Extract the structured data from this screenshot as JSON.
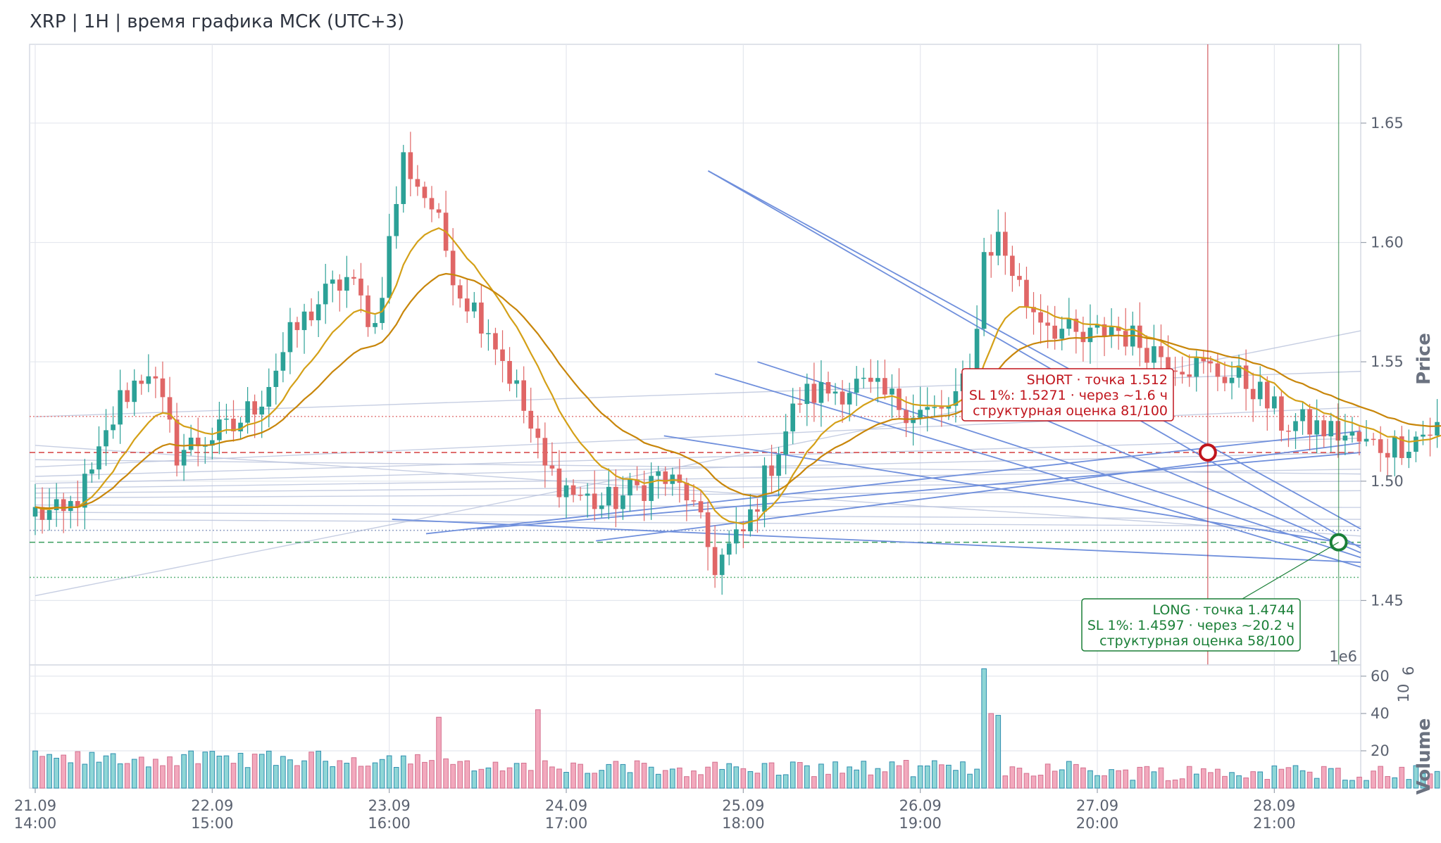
{
  "chart_data": {
    "type": "candlestick",
    "title": "XRP | 1H | время графика МСК (UTC+3)",
    "price_axis": {
      "label": "Price",
      "ylim": [
        1.423,
        1.683
      ],
      "ticks": [
        1.45,
        1.5,
        1.55,
        1.6,
        1.65
      ],
      "tick_labels": [
        "1.45",
        "1.50",
        "1.55",
        "1.60",
        "1.65"
      ]
    },
    "volume_axis": {
      "label": "Volume",
      "scale_label": "1e6",
      "exponent_label": "10",
      "exponent_power": "6",
      "ylim": [
        0,
        66
      ],
      "ticks": [
        20,
        40,
        60
      ],
      "tick_labels": [
        "20",
        "40",
        "60"
      ]
    },
    "x_axis": {
      "range_days": [
        0,
        7.8
      ],
      "ticks": [
        {
          "t": 0,
          "date": "21.09",
          "time": "14:00"
        },
        {
          "t": 1.0417,
          "date": "22.09",
          "time": "15:00"
        },
        {
          "t": 2.0833,
          "date": "23.09",
          "time": "16:00"
        },
        {
          "t": 3.125,
          "date": "24.09",
          "time": "17:00"
        },
        {
          "t": 4.1667,
          "date": "25.09",
          "time": "18:00"
        },
        {
          "t": 5.2083,
          "date": "26.09",
          "time": "19:00"
        },
        {
          "t": 6.25,
          "date": "27.09",
          "time": "20:00"
        },
        {
          "t": 7.2917,
          "date": "28.09",
          "time": "21:00"
        }
      ]
    },
    "price_anchors": [
      [
        0,
        1.487
      ],
      [
        4,
        1.485
      ],
      [
        8,
        1.502
      ],
      [
        12,
        1.534
      ],
      [
        16,
        1.548
      ],
      [
        20,
        1.512
      ],
      [
        24,
        1.518
      ],
      [
        28,
        1.522
      ],
      [
        32,
        1.536
      ],
      [
        36,
        1.56
      ],
      [
        40,
        1.575
      ],
      [
        44,
        1.585
      ],
      [
        48,
        1.565
      ],
      [
        52,
        1.635
      ],
      [
        56,
        1.615
      ],
      [
        60,
        1.58
      ],
      [
        64,
        1.565
      ],
      [
        68,
        1.538
      ],
      [
        72,
        1.505
      ],
      [
        76,
        1.495
      ],
      [
        80,
        1.49
      ],
      [
        84,
        1.495
      ],
      [
        88,
        1.502
      ],
      [
        92,
        1.495
      ],
      [
        96,
        1.465
      ],
      [
        100,
        1.478
      ],
      [
        104,
        1.508
      ],
      [
        108,
        1.535
      ],
      [
        112,
        1.538
      ],
      [
        116,
        1.54
      ],
      [
        120,
        1.535
      ],
      [
        124,
        1.53
      ],
      [
        128,
        1.528
      ],
      [
        132,
        1.543
      ],
      [
        134,
        1.595
      ],
      [
        136,
        1.602
      ],
      [
        140,
        1.575
      ],
      [
        144,
        1.565
      ],
      [
        148,
        1.558
      ],
      [
        152,
        1.565
      ],
      [
        156,
        1.558
      ],
      [
        160,
        1.552
      ],
      [
        164,
        1.548
      ],
      [
        168,
        1.545
      ],
      [
        172,
        1.54
      ],
      [
        176,
        1.525
      ],
      [
        180,
        1.523
      ],
      [
        184,
        1.52
      ],
      [
        188,
        1.515
      ],
      [
        192,
        1.515
      ],
      [
        196,
        1.52
      ],
      [
        200,
        1.524
      ],
      [
        204,
        1.522
      ],
      [
        208,
        1.51
      ],
      [
        212,
        1.492
      ],
      [
        216,
        1.478
      ],
      [
        220,
        1.474
      ],
      [
        222,
        1.482
      ]
    ],
    "volume_spikes": [
      [
        57,
        38
      ],
      [
        71,
        42
      ],
      [
        134,
        64
      ],
      [
        135,
        40
      ],
      [
        136,
        39
      ]
    ],
    "ema_fast_color": "#d4a017",
    "ema_slow_color": "#c8860a",
    "candle_up_color": "#2ca197",
    "candle_down_color": "#e06666",
    "volume_up_color": "#8fd6d6",
    "volume_down_color": "#f2a9bd",
    "levels": [
      {
        "price": 1.512,
        "style": "dashed",
        "color": "#d84e4e"
      },
      {
        "price": 1.4744,
        "style": "dashed",
        "color": "#3a9d5d"
      },
      {
        "price": 1.5271,
        "style": "dotted",
        "color": "#e58a8a"
      },
      {
        "price": 1.4597,
        "style": "dotted",
        "color": "#5fb57c"
      },
      {
        "price": 1.4794,
        "style": "dotted",
        "color": "#9aa7c8"
      }
    ],
    "signals": [
      {
        "side": "SHORT",
        "t": 6.9,
        "price": 1.512,
        "color": "#c0151d",
        "lines": [
          "SHORT · точка 1.512",
          "SL 1%: 1.5271 · через ~1.6 ч",
          "структурная оценка 81/100"
        ]
      },
      {
        "side": "LONG",
        "t": 7.67,
        "price": 1.4744,
        "color": "#1a7f37",
        "lines": [
          "LONG · точка 1.4744",
          "SL 1%: 1.4597 · через ~20.2 ч",
          "структурная оценка 58/100"
        ]
      }
    ],
    "trend_lines": [
      {
        "t1": 3.96,
        "p1": 1.63,
        "t2": 7.8,
        "p2": 1.472
      },
      {
        "t1": 3.96,
        "p1": 1.63,
        "t2": 7.8,
        "p2": 1.48
      },
      {
        "t1": 4.0,
        "p1": 1.545,
        "t2": 7.8,
        "p2": 1.464
      },
      {
        "t1": 4.25,
        "p1": 1.55,
        "t2": 7.8,
        "p2": 1.468
      },
      {
        "t1": 3.7,
        "p1": 1.519,
        "t2": 7.8,
        "p2": 1.473
      },
      {
        "t1": 2.1,
        "p1": 1.484,
        "t2": 7.8,
        "p2": 1.466
      },
      {
        "t1": 2.3,
        "p1": 1.478,
        "t2": 7.8,
        "p2": 1.521
      },
      {
        "t1": 2.6,
        "p1": 1.48,
        "t2": 7.8,
        "p2": 1.512
      },
      {
        "t1": 3.3,
        "p1": 1.475,
        "t2": 7.8,
        "p2": 1.516
      },
      {
        "t1": 5.8,
        "p1": 1.53,
        "t2": 7.8,
        "p2": 1.47
      }
    ],
    "faint_lines": [
      {
        "t1": 0,
        "p1": 1.452,
        "t2": 7.8,
        "p2": 1.563
      },
      {
        "t1": 0,
        "p1": 1.527,
        "t2": 7.8,
        "p2": 1.546
      },
      {
        "t1": 0,
        "p1": 1.506,
        "t2": 7.8,
        "p2": 1.531
      },
      {
        "t1": 0,
        "p1": 1.502,
        "t2": 7.8,
        "p2": 1.518
      },
      {
        "t1": 0,
        "p1": 1.499,
        "t2": 7.8,
        "p2": 1.512
      },
      {
        "t1": 0,
        "p1": 1.497,
        "t2": 7.8,
        "p2": 1.505
      },
      {
        "t1": 0,
        "p1": 1.495,
        "t2": 7.8,
        "p2": 1.5
      },
      {
        "t1": 0,
        "p1": 1.493,
        "t2": 7.8,
        "p2": 1.496
      },
      {
        "t1": 0,
        "p1": 1.49,
        "t2": 7.8,
        "p2": 1.489
      },
      {
        "t1": 0,
        "p1": 1.487,
        "t2": 7.8,
        "p2": 1.484
      },
      {
        "t1": 0,
        "p1": 1.484,
        "t2": 7.8,
        "p2": 1.481
      },
      {
        "t1": 0,
        "p1": 1.509,
        "t2": 7.8,
        "p2": 1.503
      },
      {
        "t1": 0,
        "p1": 1.515,
        "t2": 7.8,
        "p2": 1.477
      }
    ],
    "trend_color": "#6f8fdc",
    "faint_color": "#b9c2dc"
  }
}
